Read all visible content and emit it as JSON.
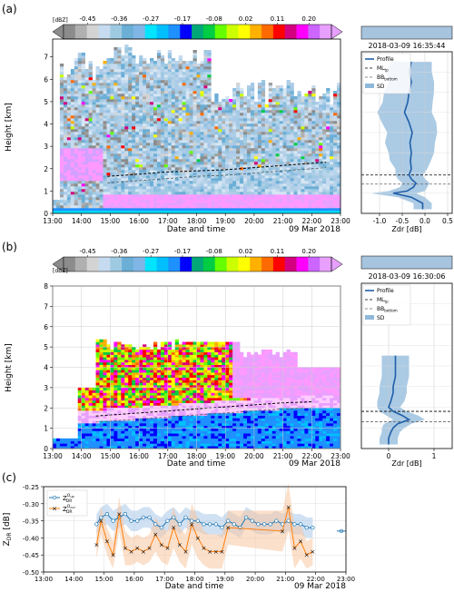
{
  "colorbar": {
    "unit": "[dBZ]",
    "tick_labels": [
      "-0.45",
      "-0.36",
      "-0.27",
      "-0.17",
      "-0.08",
      "0.02",
      "0.11",
      "0.20"
    ],
    "colors": [
      "#8c8c8c",
      "#b0b0b0",
      "#d3d3d3",
      "#c6dbef",
      "#9ecae1",
      "#6baed6",
      "#7fb6e6",
      "#00e5ff",
      "#00bfff",
      "#1e90ff",
      "#0000ff",
      "#00a878",
      "#00cc44",
      "#66ff00",
      "#ccff00",
      "#ffff00",
      "#ffb000",
      "#ff6a00",
      "#ff0000",
      "#d4007f",
      "#ff00ff",
      "#cc66ff",
      "#e8a0ff"
    ]
  },
  "panels": {
    "a": {
      "label": "(a)",
      "ylabel": "Height [km]",
      "xlabel": "Date and time",
      "date": "09 Mar 2018",
      "xticks": [
        "13:00",
        "14:00",
        "15:00",
        "16:00",
        "17:00",
        "18:00",
        "19:00",
        "20:00",
        "21:00",
        "22:00",
        "23:00"
      ],
      "yticks": [
        "0",
        "1",
        "2",
        "3",
        "4",
        "5",
        "6",
        "7"
      ],
      "profile_time": "2018-03-09 16:35:44",
      "profile_xlabel": "Zdr [dB]",
      "profile_xticks": [
        "-1.0",
        "-0.5",
        "0.0",
        "0.5"
      ]
    },
    "b": {
      "label": "(b)",
      "ylabel": "Height [km]",
      "xlabel": "Date and time",
      "date": "09 Mar 2018",
      "xticks": [
        "13:00",
        "14:00",
        "15:00",
        "16:00",
        "17:00",
        "18:00",
        "19:00",
        "20:00",
        "21:00",
        "22:00",
        "23:00"
      ],
      "yticks": [
        "0",
        "1",
        "2",
        "3",
        "4",
        "5",
        "6",
        "7",
        "8"
      ],
      "profile_time": "2018-03-09 16:30:06",
      "profile_xlabel": "Zdr [dB]",
      "profile_xticks": [
        "0",
        "1"
      ]
    },
    "c": {
      "label": "(c)",
      "xlabel": "Date and time",
      "date": "09 Mar 2018",
      "xticks": [
        "13:00",
        "14:00",
        "15:00",
        "16:00",
        "17:00",
        "18:00",
        "19:00",
        "20:00",
        "21:00",
        "22:00",
        "23:00"
      ]
    }
  },
  "legend_profile": [
    "Profile",
    "MLₜ",
    "BBвₒₜₜₒₘ",
    "SD"
  ],
  "legend_profile_text": {
    "profile": "Profile",
    "ml": "ML",
    "ml_sub": "tp",
    "bb": "BB",
    "bb_sub": "bottom",
    "sd": "SD"
  },
  "legend_c": {
    "s1": "Z",
    "s1_sub": "DR",
    "s1_sup": "O",
    "s1_supsub": "up",
    "s2": "Z",
    "s2_sub": "DR",
    "s2_sup": "O",
    "s2_supsub": "cur"
  },
  "chart_data": [
    {
      "type": "heatmap",
      "panel": "a",
      "xlabel": "Date and time",
      "ylabel": "Height [km]",
      "xlim": [
        13,
        23
      ],
      "ylim": [
        0,
        8
      ],
      "melting_layer_top_km": [
        [
          14.9,
          1.7
        ],
        [
          16,
          1.8
        ],
        [
          17,
          1.9
        ],
        [
          18,
          1.95
        ],
        [
          19,
          2.0
        ],
        [
          20,
          2.1
        ],
        [
          21,
          2.2
        ],
        [
          22,
          2.3
        ],
        [
          22.5,
          2.35
        ]
      ],
      "bb_bottom_km": [
        [
          14.9,
          1.4
        ],
        [
          16,
          1.5
        ],
        [
          17,
          1.6
        ],
        [
          18,
          1.7
        ],
        [
          19,
          1.75
        ],
        [
          20,
          1.85
        ],
        [
          21,
          1.95
        ],
        [
          22,
          2.05
        ],
        [
          22.5,
          2.1
        ]
      ]
    },
    {
      "type": "line",
      "panel": "a-profile",
      "xlabel": "Zdr [dB]",
      "xlim": [
        -1.4,
        0.6
      ],
      "ylim": [
        0,
        8
      ],
      "ml_top_km": 1.9,
      "bb_bottom_km": 1.45,
      "profile": {
        "height_km": [
          0.2,
          0.5,
          0.8,
          1.0,
          1.1,
          1.3,
          1.5,
          1.7,
          1.9,
          2.2,
          2.6,
          3.0,
          3.5,
          4.0,
          4.5,
          5.0,
          5.5,
          6.0,
          6.5,
          7.0,
          7.5
        ],
        "zdr": [
          -0.05,
          -0.05,
          -0.3,
          -0.7,
          -0.4,
          -0.25,
          -0.2,
          -0.3,
          -0.35,
          -0.3,
          -0.32,
          -0.3,
          -0.33,
          -0.28,
          -0.35,
          -0.45,
          -0.38,
          -0.35,
          -0.3,
          -0.35,
          -0.3
        ],
        "sd": [
          0.2,
          0.2,
          0.3,
          0.5,
          0.4,
          0.3,
          0.3,
          0.3,
          0.3,
          0.35,
          0.45,
          0.5,
          0.55,
          0.55,
          0.6,
          0.6,
          0.55,
          0.55,
          0.5,
          0.5,
          0.45
        ]
      }
    },
    {
      "type": "heatmap",
      "panel": "b",
      "xlabel": "Date and time",
      "ylabel": "Height [km]",
      "xlim": [
        13,
        23
      ],
      "ylim": [
        0,
        8
      ],
      "melting_layer_top_km": [
        [
          14.5,
          1.6
        ],
        [
          16,
          1.75
        ],
        [
          17,
          1.85
        ],
        [
          18,
          1.95
        ],
        [
          19,
          2.05
        ],
        [
          20,
          2.15
        ],
        [
          21,
          2.25
        ],
        [
          22,
          2.3
        ]
      ],
      "bb_bottom_km": [
        [
          14.5,
          1.3
        ],
        [
          16,
          1.45
        ],
        [
          17,
          1.55
        ],
        [
          18,
          1.65
        ],
        [
          19,
          1.75
        ],
        [
          20,
          1.85
        ],
        [
          21,
          1.95
        ],
        [
          22,
          2.0
        ]
      ]
    },
    {
      "type": "line",
      "panel": "b-profile",
      "xlabel": "Zdr [dB]",
      "xlim": [
        -0.6,
        1.4
      ],
      "ylim": [
        0,
        8
      ],
      "ml_top_km": 1.8,
      "bb_bottom_km": 1.3,
      "profile": {
        "height_km": [
          0.2,
          0.5,
          0.8,
          1.0,
          1.2,
          1.4,
          1.6,
          1.8,
          2.0,
          2.3,
          2.7,
          3.0,
          3.5,
          4.0,
          4.5
        ],
        "zdr": [
          0.0,
          0.0,
          0.05,
          0.1,
          0.2,
          0.45,
          0.3,
          0.1,
          0.0,
          0.05,
          0.1,
          0.1,
          0.15,
          0.15,
          0.15
        ],
        "sd": [
          0.2,
          0.2,
          0.2,
          0.25,
          0.3,
          0.35,
          0.35,
          0.3,
          0.25,
          0.3,
          0.3,
          0.3,
          0.3,
          0.3,
          0.3
        ]
      }
    },
    {
      "type": "line",
      "panel": "c",
      "xlabel": "Date and time",
      "ylabel": "Z_DR [dB]",
      "xlim": [
        13,
        23
      ],
      "ylim": [
        -0.5,
        -0.25
      ],
      "yticks": [
        -0.5,
        -0.45,
        -0.4,
        -0.35,
        -0.3,
        -0.25
      ],
      "series": [
        {
          "name": "Z_DR^{O_up}",
          "color": "#1f77b4",
          "x": [
            14.75,
            14.9,
            15.1,
            15.3,
            15.5,
            15.7,
            15.9,
            16.1,
            16.3,
            16.5,
            16.7,
            16.9,
            17.1,
            17.3,
            17.5,
            17.7,
            17.9,
            18.1,
            18.3,
            18.5,
            18.7,
            18.9,
            19.1,
            19.3,
            19.5,
            19.7,
            19.9,
            20.1,
            20.3,
            20.5,
            20.7,
            20.9,
            21.1,
            21.3,
            21.5,
            21.7,
            21.9
          ],
          "y": [
            -0.36,
            -0.34,
            -0.33,
            -0.35,
            -0.34,
            -0.33,
            -0.35,
            -0.35,
            -0.34,
            -0.34,
            -0.36,
            -0.37,
            -0.35,
            -0.34,
            -0.36,
            -0.34,
            -0.35,
            -0.35,
            -0.36,
            -0.36,
            -0.36,
            -0.37,
            -0.35,
            -0.36,
            -0.37,
            -0.34,
            -0.35,
            -0.36,
            -0.36,
            -0.36,
            -0.35,
            -0.36,
            -0.35,
            -0.36,
            -0.36,
            -0.37,
            -0.37
          ],
          "sd": [
            0.03,
            0.03,
            0.03,
            0.03,
            0.03,
            0.03,
            0.03,
            0.03,
            0.03,
            0.03,
            0.03,
            0.03,
            0.03,
            0.03,
            0.03,
            0.03,
            0.03,
            0.03,
            0.03,
            0.03,
            0.03,
            0.03,
            0.03,
            0.03,
            0.03,
            0.03,
            0.03,
            0.03,
            0.03,
            0.03,
            0.03,
            0.03,
            0.03,
            0.03,
            0.03,
            0.03,
            0.03
          ]
        },
        {
          "name": "Z_DR^{O_cur}",
          "color": "#ff7f0e",
          "x": [
            14.75,
            14.9,
            15.1,
            15.3,
            15.5,
            15.7,
            15.9,
            16.1,
            16.3,
            16.5,
            16.7,
            16.9,
            17.1,
            17.3,
            17.5,
            17.7,
            17.9,
            18.1,
            18.3,
            18.5,
            18.7,
            18.9,
            19.1,
            20.9,
            21.1,
            21.3,
            21.5,
            21.7,
            21.9
          ],
          "y": [
            -0.42,
            -0.35,
            -0.41,
            -0.45,
            -0.33,
            -0.43,
            -0.44,
            -0.43,
            -0.44,
            -0.43,
            -0.39,
            -0.42,
            -0.43,
            -0.37,
            -0.42,
            -0.44,
            -0.36,
            -0.4,
            -0.43,
            -0.44,
            -0.44,
            -0.44,
            -0.37,
            -0.38,
            -0.31,
            -0.43,
            -0.41,
            -0.45,
            -0.44
          ],
          "sd": [
            0.04,
            0.04,
            0.04,
            0.04,
            0.05,
            0.05,
            0.04,
            0.04,
            0.04,
            0.04,
            0.05,
            0.05,
            0.05,
            0.06,
            0.05,
            0.05,
            0.06,
            0.06,
            0.05,
            0.05,
            0.05,
            0.05,
            0.05,
            0.06,
            0.07,
            0.06,
            0.05,
            0.04,
            0.04
          ]
        }
      ]
    }
  ]
}
